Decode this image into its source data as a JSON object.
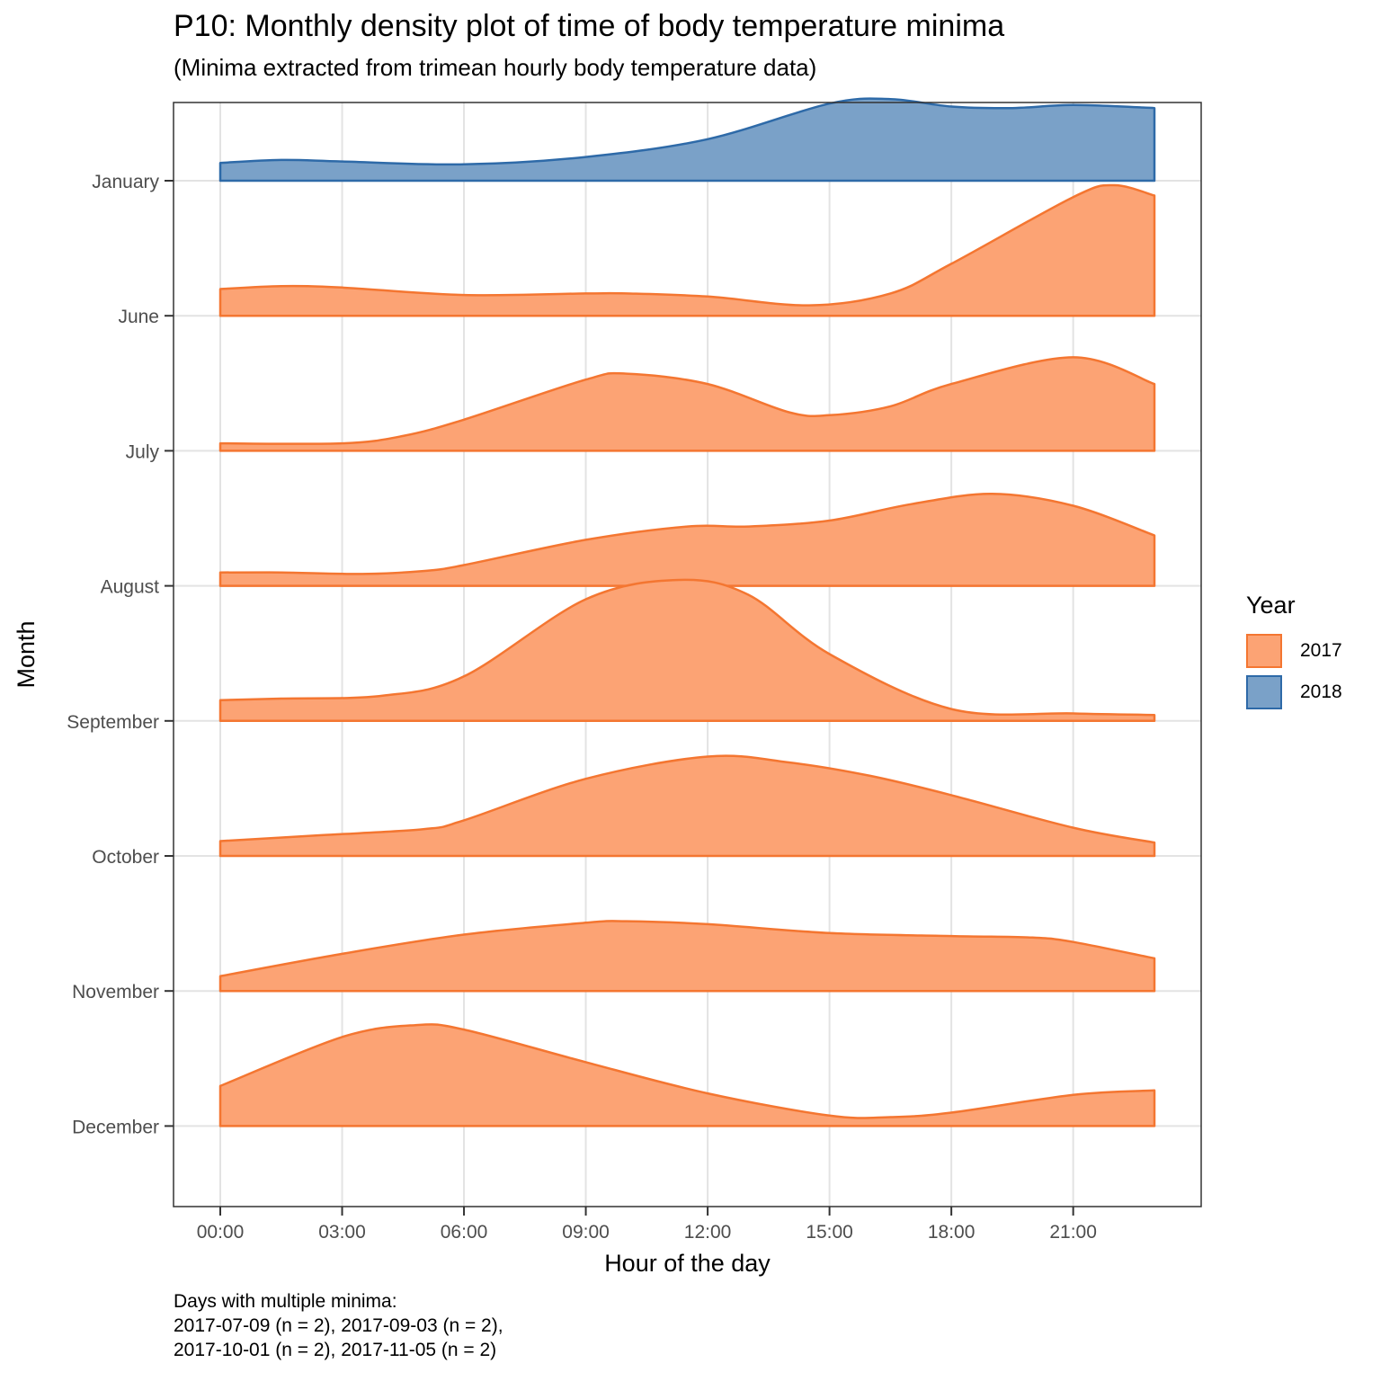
{
  "title": "P10: Monthly density plot of time of body temperature minima",
  "subtitle": "(Minima extracted from trimean hourly body temperature data)",
  "caption": [
    "Days with multiple minima:",
    "2017-07-09 (n = 2), 2017-09-03 (n = 2),",
    "2017-10-01 (n = 2), 2017-11-05 (n = 2)"
  ],
  "legend": {
    "title": "Year",
    "items": [
      {
        "label": "2017",
        "fill": "#FCA374",
        "stroke": "#F47631"
      },
      {
        "label": "2018",
        "fill": "#7AA1C8",
        "stroke": "#2E6AA8"
      }
    ]
  },
  "chart_data": {
    "type": "area",
    "subtype": "ridgeline-density",
    "title": "P10: Monthly density plot of time of body temperature minima",
    "subtitle": "(Minima extracted from trimean hourly body temperature data)",
    "xlabel": "Hour of the day",
    "ylabel": "Month",
    "x_ticks": [
      "00:00",
      "03:00",
      "06:00",
      "09:00",
      "12:00",
      "15:00",
      "18:00",
      "21:00"
    ],
    "x_tick_hours": [
      0,
      3,
      6,
      9,
      12,
      15,
      18,
      21
    ],
    "xlim": [
      -1.15,
      24.15
    ],
    "y_categories": [
      "January",
      "June",
      "July",
      "August",
      "September",
      "October",
      "November",
      "December"
    ],
    "grid": true,
    "legend_position": "right",
    "series": [
      {
        "month": "January",
        "year": "2018",
        "x": [
          0,
          1.5,
          3,
          6,
          9,
          12,
          15,
          16.5,
          18,
          19.5,
          21,
          23
        ],
        "y": [
          0.12,
          0.14,
          0.13,
          0.11,
          0.16,
          0.28,
          0.52,
          0.55,
          0.5,
          0.49,
          0.51,
          0.49
        ]
      },
      {
        "month": "June",
        "year": "2017",
        "x": [
          0,
          1.5,
          3,
          6,
          9,
          10,
          12,
          14.5,
          16.5,
          18,
          21,
          22,
          23
        ],
        "y": [
          0.18,
          0.2,
          0.19,
          0.14,
          0.15,
          0.15,
          0.13,
          0.07,
          0.15,
          0.35,
          0.8,
          0.88,
          0.81
        ]
      },
      {
        "month": "July",
        "year": "2017",
        "x": [
          0,
          3,
          4.5,
          6,
          9,
          10,
          12,
          14,
          15,
          16.5,
          18,
          21,
          23
        ],
        "y": [
          0.05,
          0.05,
          0.1,
          0.21,
          0.48,
          0.52,
          0.45,
          0.26,
          0.24,
          0.3,
          0.45,
          0.63,
          0.45
        ]
      },
      {
        "month": "August",
        "year": "2017",
        "x": [
          0,
          1.5,
          3.5,
          5,
          6,
          9,
          11.5,
          13,
          15,
          17,
          19,
          21,
          23
        ],
        "y": [
          0.09,
          0.09,
          0.08,
          0.1,
          0.14,
          0.31,
          0.4,
          0.4,
          0.44,
          0.55,
          0.62,
          0.54,
          0.34
        ]
      },
      {
        "month": "September",
        "year": "2017",
        "x": [
          0,
          1.5,
          4,
          6,
          9,
          11.3,
          13,
          15,
          18,
          21,
          23
        ],
        "y": [
          0.14,
          0.15,
          0.17,
          0.3,
          0.82,
          0.95,
          0.85,
          0.45,
          0.08,
          0.05,
          0.04
        ]
      },
      {
        "month": "October",
        "year": "2017",
        "x": [
          0,
          2.5,
          5,
          6,
          9,
          12,
          14,
          16,
          18,
          21,
          23
        ],
        "y": [
          0.1,
          0.14,
          0.18,
          0.24,
          0.52,
          0.67,
          0.63,
          0.54,
          0.41,
          0.19,
          0.09
        ]
      },
      {
        "month": "November",
        "year": "2017",
        "x": [
          0,
          3,
          6,
          9,
          10,
          12,
          15,
          18,
          20,
          21,
          23
        ],
        "y": [
          0.1,
          0.25,
          0.38,
          0.46,
          0.47,
          0.45,
          0.39,
          0.37,
          0.36,
          0.33,
          0.22
        ]
      },
      {
        "month": "December",
        "year": "2017",
        "x": [
          0,
          3,
          4.8,
          6,
          9,
          12,
          15,
          16.5,
          18,
          21,
          23
        ],
        "y": [
          0.27,
          0.6,
          0.68,
          0.65,
          0.43,
          0.22,
          0.07,
          0.06,
          0.09,
          0.21,
          0.24
        ]
      }
    ]
  }
}
